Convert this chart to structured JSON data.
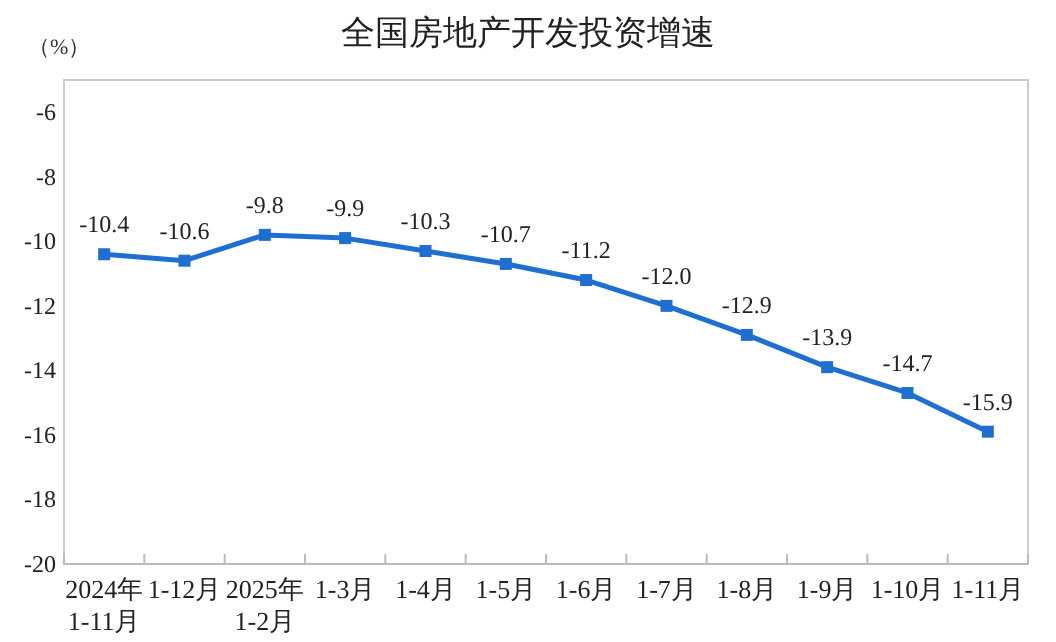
{
  "chart_data": {
    "type": "line",
    "title": "全国房地产开发投资增速",
    "ylabel": "（%）",
    "categories": [
      "2024年\n1-11月",
      "1-12月",
      "2025年\n1-2月",
      "1-3月",
      "1-4月",
      "1-5月",
      "1-6月",
      "1-7月",
      "1-8月",
      "1-9月",
      "1-10月",
      "1-11月"
    ],
    "series": [
      {
        "color": "#1f6fd1",
        "values": [
          -10.4,
          -10.6,
          -9.8,
          -9.9,
          -10.3,
          -10.7,
          -11.2,
          -12.0,
          -12.9,
          -13.9,
          -14.7,
          -15.9
        ],
        "value_labels": [
          "-10.4",
          "-10.6",
          "-9.8",
          "-9.9",
          "-10.3",
          "-10.7",
          "-11.2",
          "-12.0",
          "-12.9",
          "-13.9",
          "-14.7",
          "-15.9"
        ]
      }
    ],
    "ylim": [
      -20,
      -5
    ],
    "yticks": [
      -20,
      -18,
      -16,
      -14,
      -12,
      -10,
      -8,
      -6
    ],
    "marker": "square",
    "line_style": "solid",
    "grid": false
  }
}
